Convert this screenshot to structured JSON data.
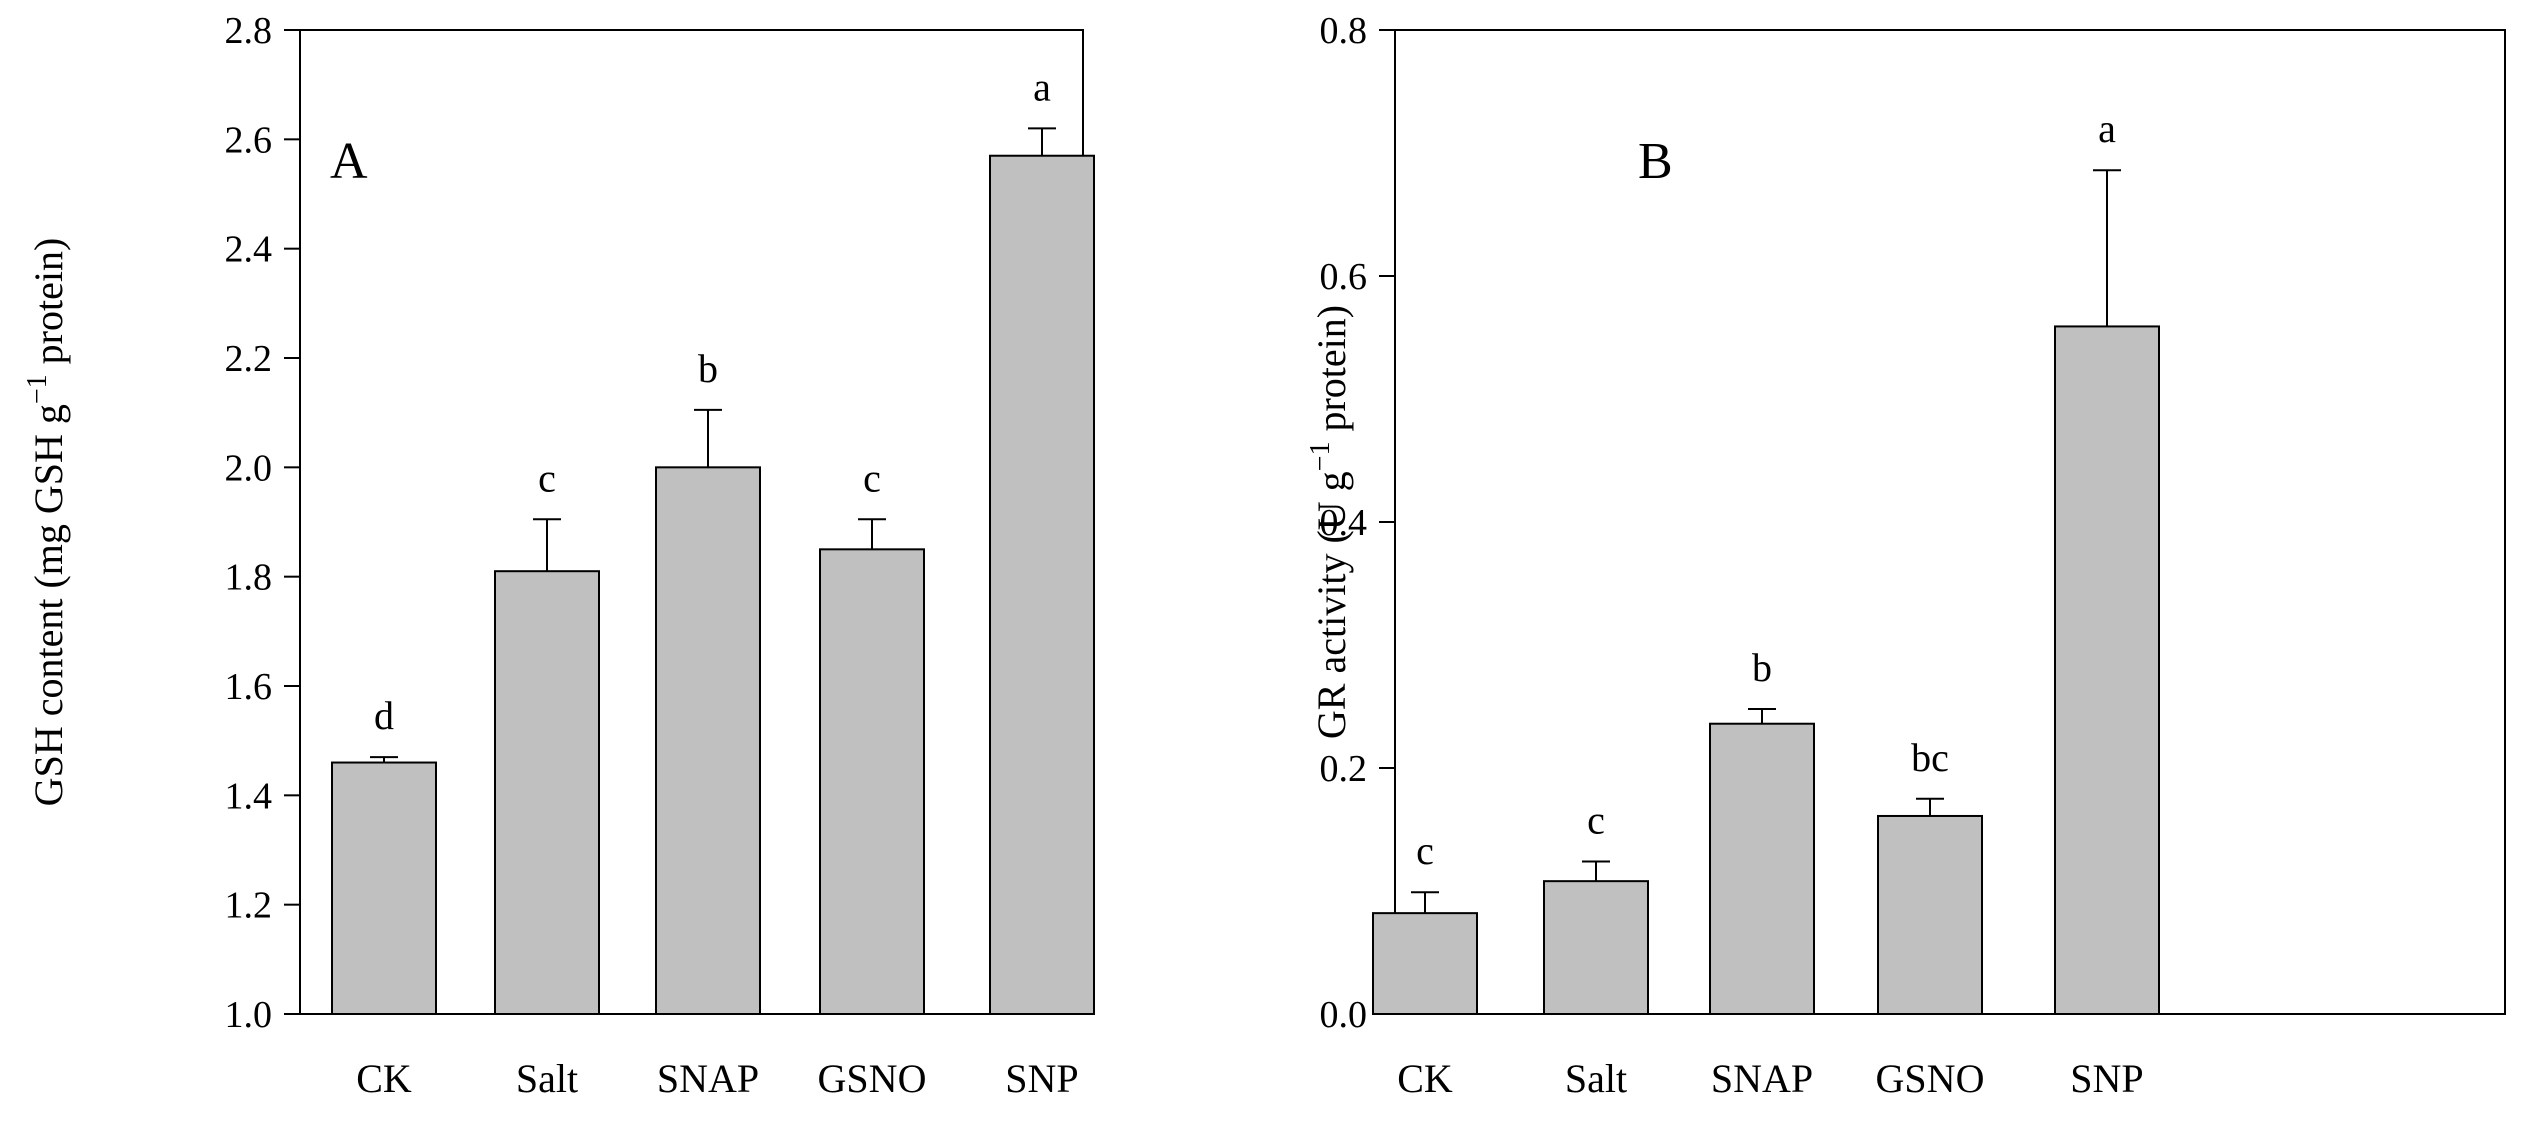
{
  "chart_data": [
    {
      "type": "bar",
      "panel_label": "A",
      "title": "",
      "xlabel": "",
      "ylabel": "GSH content (mg GSH g",
      "ylabel_superscript": "−1",
      "ylabel_suffix": " protein)",
      "categories": [
        "CK",
        "Salt",
        "SNAP",
        "GSNO",
        "SNP"
      ],
      "values": [
        1.46,
        1.81,
        2.0,
        1.85,
        2.57
      ],
      "errors": [
        0.01,
        0.095,
        0.105,
        0.055,
        0.05
      ],
      "significance_letters": [
        "d",
        "c",
        "b",
        "c",
        "a"
      ],
      "ylim": [
        1.0,
        2.8
      ],
      "yticks": [
        1.0,
        1.2,
        1.4,
        1.6,
        1.8,
        2.0,
        2.2,
        2.4,
        2.6,
        2.8
      ],
      "ytick_labels": [
        "1.0",
        "1.2",
        "1.4",
        "1.6",
        "1.8",
        "2.0",
        "2.2",
        "2.4",
        "2.6",
        "2.8"
      ],
      "bar_color": "#c0c0c0",
      "grid": false
    },
    {
      "type": "bar",
      "panel_label": "B",
      "title": "",
      "xlabel": "",
      "ylabel": "GR activity (U g",
      "ylabel_superscript": "−1",
      "ylabel_suffix": " protein)",
      "categories": [
        "CK",
        "Salt",
        "SNAP",
        "GSNO",
        "SNP"
      ],
      "values": [
        0.082,
        0.108,
        0.236,
        0.161,
        0.559
      ],
      "errors": [
        0.017,
        0.016,
        0.012,
        0.014,
        0.127
      ],
      "significance_letters": [
        "c",
        "c",
        "b",
        "bc",
        "a"
      ],
      "ylim": [
        0.0,
        0.8
      ],
      "yticks": [
        0.0,
        0.2,
        0.4,
        0.6,
        0.8
      ],
      "ytick_labels": [
        "0.0",
        "0.2",
        "0.4",
        "0.6",
        "0.8"
      ],
      "bar_color": "#c0c0c0",
      "grid": false
    }
  ]
}
